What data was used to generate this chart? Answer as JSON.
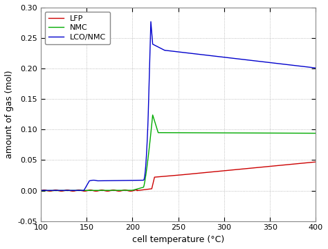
{
  "title": "",
  "xlabel": "cell temperature (°C)",
  "ylabel": "amount of gas (mol)",
  "xlim": [
    100,
    400
  ],
  "ylim": [
    -0.05,
    0.3
  ],
  "yticks": [
    -0.05,
    0.0,
    0.05,
    0.1,
    0.15,
    0.2,
    0.25,
    0.3
  ],
  "xticks": [
    100,
    150,
    200,
    250,
    300,
    350,
    400
  ],
  "legend_labels": [
    "LFP",
    "NMC",
    "LCO/NMC"
  ],
  "line_colors": [
    "#cc0000",
    "#00aa00",
    "#0000cc"
  ],
  "bg_color": "#ffffff",
  "grid_color": "#aaaaaa",
  "figsize": [
    4.74,
    3.6
  ],
  "dpi": 100
}
